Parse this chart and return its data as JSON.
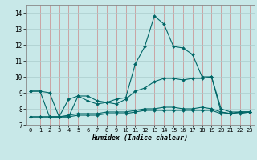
{
  "xlabel": "Humidex (Indice chaleur)",
  "bg_color": "#c8e8e8",
  "major_grid_color": "#cc8888",
  "minor_grid_color": "#aacccc",
  "line_color": "#006666",
  "xlim": [
    -0.5,
    23.5
  ],
  "ylim": [
    7.0,
    14.5
  ],
  "yticks": [
    7,
    8,
    9,
    10,
    11,
    12,
    13,
    14
  ],
  "xticks": [
    0,
    1,
    2,
    3,
    4,
    5,
    6,
    7,
    8,
    9,
    10,
    11,
    12,
    13,
    14,
    15,
    16,
    17,
    18,
    19,
    20,
    21,
    22,
    23
  ],
  "lines": [
    {
      "x": [
        0,
        1,
        2,
        3,
        4,
        5,
        6,
        7,
        8,
        9,
        10,
        11,
        12,
        13,
        14,
        15,
        16,
        17,
        18,
        19,
        20,
        21,
        22,
        23
      ],
      "y": [
        9.1,
        9.1,
        9.0,
        7.5,
        8.6,
        8.8,
        8.8,
        8.5,
        8.4,
        8.6,
        8.7,
        10.8,
        11.9,
        13.8,
        13.3,
        11.9,
        11.8,
        11.4,
        10.0,
        10.0,
        8.0,
        7.8,
        7.8,
        7.8
      ]
    },
    {
      "x": [
        0,
        1,
        2,
        3,
        4,
        5,
        6,
        7,
        8,
        9,
        10,
        11,
        12,
        13,
        14,
        15,
        16,
        17,
        18,
        19,
        20,
        21,
        22,
        23
      ],
      "y": [
        9.1,
        9.1,
        7.5,
        7.5,
        7.5,
        8.8,
        8.5,
        8.3,
        8.4,
        8.3,
        8.6,
        9.1,
        9.3,
        9.7,
        9.9,
        9.9,
        9.8,
        9.9,
        9.9,
        10.0,
        7.8,
        7.7,
        7.8,
        7.8
      ]
    },
    {
      "x": [
        0,
        1,
        2,
        3,
        4,
        5,
        6,
        7,
        8,
        9,
        10,
        11,
        12,
        13,
        14,
        15,
        16,
        17,
        18,
        19,
        20,
        21,
        22,
        23
      ],
      "y": [
        7.5,
        7.5,
        7.5,
        7.5,
        7.5,
        7.6,
        7.6,
        7.6,
        7.7,
        7.7,
        7.7,
        7.8,
        7.9,
        7.9,
        7.9,
        7.9,
        7.9,
        7.9,
        7.9,
        7.9,
        7.7,
        7.7,
        7.7,
        7.8
      ]
    },
    {
      "x": [
        0,
        1,
        2,
        3,
        4,
        5,
        6,
        7,
        8,
        9,
        10,
        11,
        12,
        13,
        14,
        15,
        16,
        17,
        18,
        19,
        20,
        21,
        22,
        23
      ],
      "y": [
        7.5,
        7.5,
        7.5,
        7.5,
        7.6,
        7.7,
        7.7,
        7.7,
        7.8,
        7.8,
        7.8,
        7.9,
        8.0,
        8.0,
        8.1,
        8.1,
        8.0,
        8.0,
        8.1,
        8.0,
        7.8,
        7.7,
        7.8,
        7.8
      ]
    }
  ],
  "xlabel_fontsize": 6.0,
  "tick_fontsize": 5.0,
  "linewidth": 0.8,
  "markersize": 2.0
}
